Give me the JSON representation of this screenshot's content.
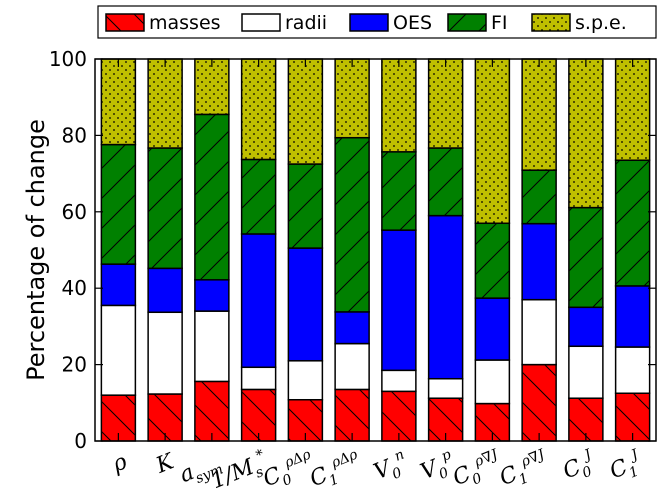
{
  "chart_data": {
    "type": "bar",
    "stacked": true,
    "ylabel": "Percentage of change",
    "ylim": [
      0,
      100
    ],
    "yticks": [
      0,
      20,
      40,
      60,
      80,
      100
    ],
    "legend_position": "top",
    "categories": [
      {
        "base": "ρ",
        "sub": "",
        "sup": ""
      },
      {
        "base": "K",
        "sub": "",
        "sup": ""
      },
      {
        "base": "a",
        "sub": "sym",
        "sup": ""
      },
      {
        "base": "1/M",
        "sub": "s",
        "sup": "*"
      },
      {
        "base": "C",
        "sub": "0",
        "sup": "ρΔρ"
      },
      {
        "base": "C",
        "sub": "1",
        "sup": "ρΔρ"
      },
      {
        "base": "V",
        "sub": "0",
        "sup": "n"
      },
      {
        "base": "V",
        "sub": "0",
        "sup": "p"
      },
      {
        "base": "C",
        "sub": "0",
        "sup": "ρ∇J"
      },
      {
        "base": "C",
        "sub": "1",
        "sup": "ρ∇J"
      },
      {
        "base": "C",
        "sub": "0",
        "sup": "J"
      },
      {
        "base": "C",
        "sub": "1",
        "sup": "J"
      }
    ],
    "series": [
      {
        "name": "masses",
        "color": "#ff0000",
        "hatch": "backslash",
        "values": [
          12,
          12.3,
          15.6,
          13.5,
          10.8,
          13.5,
          13.0,
          11.2,
          9.8,
          20.0,
          11.2,
          12.5
        ]
      },
      {
        "name": "radii",
        "color": "#ffffff",
        "hatch": "none",
        "values": [
          23.5,
          21.4,
          18.4,
          5.8,
          10.2,
          12.0,
          5.5,
          5.1,
          11.4,
          17.0,
          13.6,
          12.1
        ]
      },
      {
        "name": "OES",
        "color": "#0000ff",
        "hatch": "none",
        "values": [
          10.8,
          11.5,
          8.2,
          34.9,
          29.5,
          8.3,
          36.7,
          42.7,
          16.2,
          19.9,
          10.2,
          16.0
        ]
      },
      {
        "name": "FI",
        "color": "#008000",
        "hatch": "slash",
        "values": [
          31.3,
          31.5,
          43.3,
          19.5,
          22.0,
          45.6,
          20.5,
          17.7,
          19.6,
          14.0,
          26.1,
          32.9
        ]
      },
      {
        "name": "s.p.e.",
        "color": "#bfbf00",
        "hatch": "dots",
        "values": [
          22.4,
          23.3,
          14.5,
          26.3,
          27.5,
          20.6,
          24.3,
          23.3,
          43.0,
          29.1,
          38.9,
          26.5
        ]
      }
    ]
  }
}
